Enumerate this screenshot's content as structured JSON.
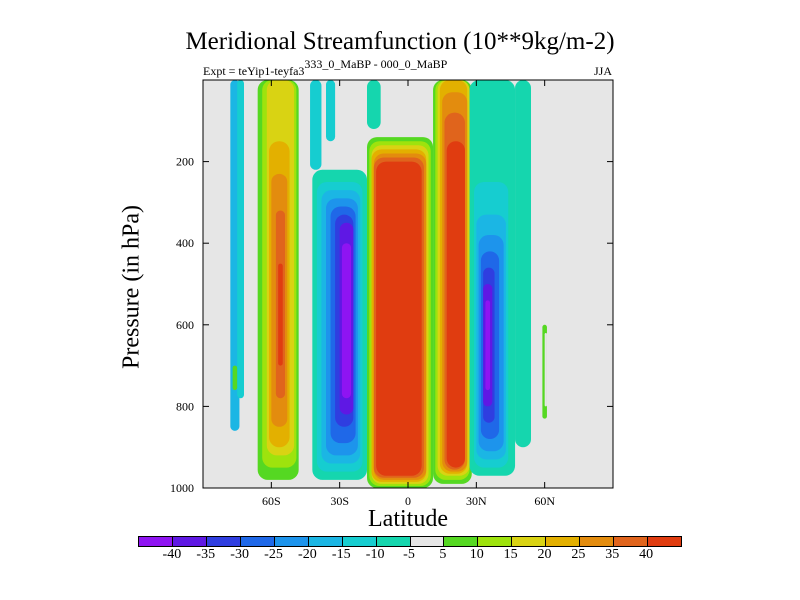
{
  "header": {
    "title": "Meridional Streamfunction (10**9kg/m-2)",
    "expt_prefix": "Expt = teYip1-teyfa3",
    "expt_suffix": "333_0_MaBP - 000_0_MaBP",
    "season": "JJA"
  },
  "chart_data": {
    "type": "heatmap",
    "title": "Meridional Streamfunction (10**9kg/m-2)",
    "xlabel": "Latitude",
    "ylabel": "Pressure (in hPa)",
    "xlim": [
      -90,
      90
    ],
    "ylim": [
      1000,
      0
    ],
    "x_ticks": [
      {
        "value": -60,
        "label": "60S"
      },
      {
        "value": -30,
        "label": "30S"
      },
      {
        "value": 0,
        "label": "0"
      },
      {
        "value": 30,
        "label": "30N"
      },
      {
        "value": 60,
        "label": "60N"
      }
    ],
    "y_ticks": [
      {
        "value": 200,
        "label": "200"
      },
      {
        "value": 400,
        "label": "400"
      },
      {
        "value": 600,
        "label": "600"
      },
      {
        "value": 800,
        "label": "800"
      },
      {
        "value": 1000,
        "label": "1000"
      }
    ],
    "colorbar": {
      "labels": [
        "-40",
        "-35",
        "-30",
        "-25",
        "-20",
        "-15",
        "-10",
        "-5",
        "5",
        "10",
        "15",
        "20",
        "25",
        "35",
        "40"
      ],
      "colors": [
        "#8f14f2",
        "#5f18e4",
        "#2f3ee0",
        "#1f68e8",
        "#1d94ec",
        "#1bb6e4",
        "#16cdd0",
        "#15d6ae",
        "#e6e6e6",
        "#55d822",
        "#9ee30d",
        "#d9d313",
        "#e3b000",
        "#e38c0e",
        "#e0641c",
        "#e03c10"
      ]
    },
    "cells": [
      {
        "lat": [
          -78,
          -74
        ],
        "p": [
          0,
          860
        ],
        "level": 5
      },
      {
        "lat": [
          -75,
          -72
        ],
        "p": [
          0,
          780
        ],
        "level": 6
      },
      {
        "lat": [
          -77,
          -75
        ],
        "p": [
          700,
          760
        ],
        "level": 9
      },
      {
        "lat": [
          -66,
          -48
        ],
        "p": [
          0,
          980
        ],
        "level": 9
      },
      {
        "lat": [
          -64,
          -49
        ],
        "p": [
          0,
          950
        ],
        "level": 10
      },
      {
        "lat": [
          -62,
          -50
        ],
        "p": [
          0,
          920
        ],
        "level": 11
      },
      {
        "lat": [
          -61,
          -52
        ],
        "p": [
          150,
          900
        ],
        "level": 12
      },
      {
        "lat": [
          -60,
          -53
        ],
        "p": [
          230,
          850
        ],
        "level": 13
      },
      {
        "lat": [
          -58,
          -54
        ],
        "p": [
          320,
          780
        ],
        "level": 14
      },
      {
        "lat": [
          -57,
          -55
        ],
        "p": [
          450,
          700
        ],
        "level": 15
      },
      {
        "lat": [
          -43,
          -38
        ],
        "p": [
          0,
          220
        ],
        "level": 6
      },
      {
        "lat": [
          -36,
          -32
        ],
        "p": [
          0,
          150
        ],
        "level": 6
      },
      {
        "lat": [
          -42,
          -18
        ],
        "p": [
          220,
          980
        ],
        "level": 7
      },
      {
        "lat": [
          -40,
          -20
        ],
        "p": [
          250,
          960
        ],
        "level": 6
      },
      {
        "lat": [
          -38,
          -21
        ],
        "p": [
          270,
          940
        ],
        "level": 5
      },
      {
        "lat": [
          -36,
          -22
        ],
        "p": [
          290,
          920
        ],
        "level": 4
      },
      {
        "lat": [
          -34,
          -23
        ],
        "p": [
          310,
          890
        ],
        "level": 3
      },
      {
        "lat": [
          -32,
          -24
        ],
        "p": [
          330,
          850
        ],
        "level": 2
      },
      {
        "lat": [
          -30,
          -24
        ],
        "p": [
          350,
          820
        ],
        "level": 1
      },
      {
        "lat": [
          -29,
          -25
        ],
        "p": [
          400,
          780
        ],
        "level": 0
      },
      {
        "lat": [
          -18,
          -12
        ],
        "p": [
          0,
          120
        ],
        "level": 7
      },
      {
        "lat": [
          -18,
          11
        ],
        "p": [
          140,
          1000
        ],
        "level": 9
      },
      {
        "lat": [
          -17,
          10
        ],
        "p": [
          150,
          995
        ],
        "level": 10
      },
      {
        "lat": [
          -16,
          9
        ],
        "p": [
          160,
          990
        ],
        "level": 11
      },
      {
        "lat": [
          -16,
          8
        ],
        "p": [
          170,
          985
        ],
        "level": 12
      },
      {
        "lat": [
          -15,
          8
        ],
        "p": [
          180,
          980
        ],
        "level": 13
      },
      {
        "lat": [
          -15,
          7
        ],
        "p": [
          190,
          975
        ],
        "level": 14
      },
      {
        "lat": [
          -14,
          6
        ],
        "p": [
          200,
          970
        ],
        "level": 15
      },
      {
        "lat": [
          11,
          28
        ],
        "p": [
          0,
          990
        ],
        "level": 9
      },
      {
        "lat": [
          12,
          27
        ],
        "p": [
          0,
          980
        ],
        "level": 10
      },
      {
        "lat": [
          13,
          27
        ],
        "p": [
          0,
          970
        ],
        "level": 11
      },
      {
        "lat": [
          14,
          26
        ],
        "p": [
          0,
          965
        ],
        "level": 12
      },
      {
        "lat": [
          15,
          26
        ],
        "p": [
          30,
          960
        ],
        "level": 13
      },
      {
        "lat": [
          16,
          25
        ],
        "p": [
          80,
          955
        ],
        "level": 14
      },
      {
        "lat": [
          17,
          25
        ],
        "p": [
          150,
          950
        ],
        "level": 15
      },
      {
        "lat": [
          27,
          47
        ],
        "p": [
          0,
          970
        ],
        "level": 7
      },
      {
        "lat": [
          29,
          44
        ],
        "p": [
          250,
          950
        ],
        "level": 6
      },
      {
        "lat": [
          30,
          43
        ],
        "p": [
          330,
          930
        ],
        "level": 5
      },
      {
        "lat": [
          31,
          42
        ],
        "p": [
          380,
          910
        ],
        "level": 4
      },
      {
        "lat": [
          32,
          40
        ],
        "p": [
          420,
          880
        ],
        "level": 3
      },
      {
        "lat": [
          33,
          38
        ],
        "p": [
          460,
          840
        ],
        "level": 2
      },
      {
        "lat": [
          33,
          37
        ],
        "p": [
          500,
          800
        ],
        "level": 1
      },
      {
        "lat": [
          34,
          36
        ],
        "p": [
          540,
          760
        ],
        "level": 0
      },
      {
        "lat": [
          47,
          54
        ],
        "p": [
          0,
          900
        ],
        "level": 7
      },
      {
        "lat": [
          59,
          61
        ],
        "p": [
          600,
          830
        ],
        "level": 9
      },
      {
        "lat": [
          60,
          61
        ],
        "p": [
          620,
          800
        ],
        "level": 8
      }
    ]
  }
}
